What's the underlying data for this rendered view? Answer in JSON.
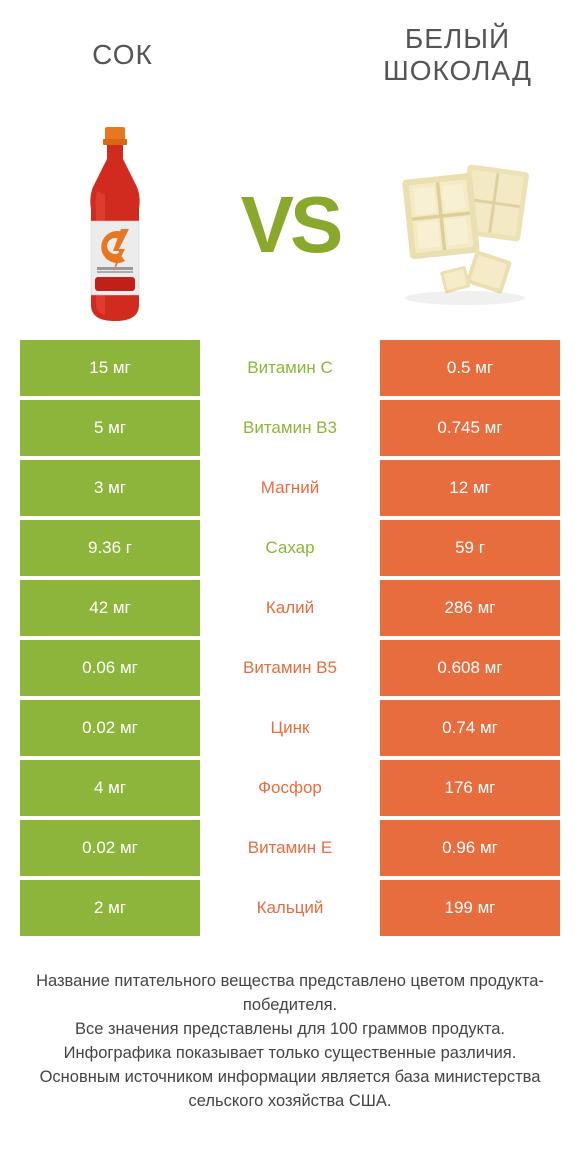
{
  "colors": {
    "green": "#8eb53b",
    "orange": "#e86d3e",
    "vs": "#8aa82c",
    "title": "#555555",
    "footer_text": "#444444"
  },
  "header": {
    "left_title": "СОК",
    "right_title": "БЕЛЫЙ ШОКОЛАД"
  },
  "vs_label": "VS",
  "table": {
    "rows": [
      {
        "left": "15 мг",
        "name": "Витамин C",
        "right": "0.5 мг",
        "name_color": "green"
      },
      {
        "left": "5 мг",
        "name": "Витамин B3",
        "right": "0.745 мг",
        "name_color": "green"
      },
      {
        "left": "3 мг",
        "name": "Магний",
        "right": "12 мг",
        "name_color": "orange"
      },
      {
        "left": "9.36 г",
        "name": "Сахар",
        "right": "59 г",
        "name_color": "green"
      },
      {
        "left": "42 мг",
        "name": "Калий",
        "right": "286 мг",
        "name_color": "orange"
      },
      {
        "left": "0.06 мг",
        "name": "Витамин B5",
        "right": "0.608 мг",
        "name_color": "orange"
      },
      {
        "left": "0.02 мг",
        "name": "Цинк",
        "right": "0.74 мг",
        "name_color": "orange"
      },
      {
        "left": "4 мг",
        "name": "Фосфор",
        "right": "176 мг",
        "name_color": "orange"
      },
      {
        "left": "0.02 мг",
        "name": "Витамин E",
        "right": "0.96 мг",
        "name_color": "orange"
      },
      {
        "left": "2 мг",
        "name": "Кальций",
        "right": "199 мг",
        "name_color": "orange"
      }
    ]
  },
  "footer": {
    "line1": "Название питательного вещества представлено цветом продукта-победителя.",
    "line2": "Все значения представлены для 100 граммов продукта.",
    "line3": "Инфографика показывает только существенные различия.",
    "line4": "Основным источником информации является база министерства сельского хозяйства США."
  }
}
